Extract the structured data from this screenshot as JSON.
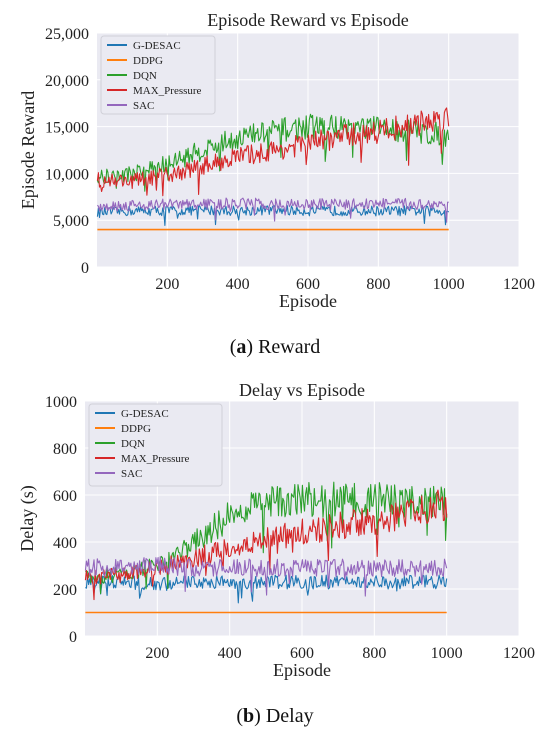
{
  "chart_data": [
    {
      "type": "line",
      "title": "Episode Reward vs Episode",
      "xlabel": "Episode",
      "ylabel": "Episode Reward",
      "xlim": [
        0,
        1200
      ],
      "ylim": [
        0,
        25000
      ],
      "xticks": [
        200,
        400,
        600,
        800,
        1000,
        1200
      ],
      "yticks": [
        0,
        5000,
        10000,
        15000,
        20000,
        25000
      ],
      "ytick_labels": [
        "0",
        "5,000",
        "10,000",
        "15,000",
        "20,000",
        "25,000"
      ],
      "grid": true,
      "legend_position": "top-left",
      "series": [
        {
          "name": "G-DESAC",
          "color": "#1f77b4",
          "x": [
            1,
            100,
            200,
            300,
            400,
            500,
            600,
            700,
            800,
            900,
            1000
          ],
          "values": [
            5800,
            6000,
            6000,
            6100,
            6000,
            6100,
            6000,
            6000,
            6000,
            6000,
            6000
          ]
        },
        {
          "name": "DDPG",
          "color": "#ff7f0e",
          "x": [
            1,
            1000
          ],
          "values": [
            4000,
            4000
          ]
        },
        {
          "name": "DQN",
          "color": "#2ca02c",
          "x": [
            1,
            100,
            200,
            300,
            400,
            500,
            600,
            700,
            800,
            900,
            1000
          ],
          "values": [
            9500,
            10000,
            11000,
            12500,
            13800,
            14500,
            15000,
            15000,
            14800,
            14500,
            14000
          ]
        },
        {
          "name": "MAX_Pressure",
          "color": "#d62728",
          "x": [
            1,
            100,
            200,
            300,
            400,
            500,
            600,
            700,
            800,
            900,
            1000
          ],
          "values": [
            9300,
            9200,
            9800,
            10800,
            11800,
            12400,
            13200,
            14000,
            14500,
            15200,
            16000
          ]
        },
        {
          "name": "SAC",
          "color": "#9467bd",
          "x": [
            1,
            100,
            200,
            300,
            400,
            500,
            600,
            700,
            800,
            900,
            1000
          ],
          "values": [
            6500,
            6600,
            6700,
            6700,
            6800,
            6700,
            6700,
            6700,
            6800,
            6700,
            6700
          ]
        }
      ]
    },
    {
      "type": "line",
      "title": "Delay vs Episode",
      "xlabel": "Episode",
      "ylabel": "Delay (s)",
      "xlim": [
        0,
        1200
      ],
      "ylim": [
        0,
        1000
      ],
      "xticks": [
        200,
        400,
        600,
        800,
        1000,
        1200
      ],
      "yticks": [
        0,
        200,
        400,
        600,
        800,
        1000
      ],
      "ytick_labels": [
        "0",
        "200",
        "400",
        "600",
        "800",
        "1000"
      ],
      "grid": true,
      "legend_position": "top-left",
      "series": [
        {
          "name": "G-DESAC",
          "color": "#1f77b4",
          "x": [
            1,
            100,
            200,
            300,
            400,
            500,
            600,
            700,
            800,
            900,
            1000
          ],
          "values": [
            230,
            230,
            220,
            230,
            230,
            230,
            230,
            230,
            230,
            230,
            230
          ]
        },
        {
          "name": "DDPG",
          "color": "#ff7f0e",
          "x": [
            1,
            1000
          ],
          "values": [
            100,
            100
          ]
        },
        {
          "name": "DQN",
          "color": "#2ca02c",
          "x": [
            1,
            100,
            200,
            300,
            400,
            500,
            600,
            700,
            800,
            900,
            1000
          ],
          "values": [
            250,
            260,
            300,
            400,
            510,
            560,
            580,
            580,
            580,
            570,
            560
          ]
        },
        {
          "name": "MAX_Pressure",
          "color": "#d62728",
          "x": [
            1,
            100,
            200,
            300,
            400,
            500,
            600,
            700,
            800,
            900,
            1000
          ],
          "values": [
            250,
            260,
            290,
            330,
            370,
            410,
            440,
            470,
            490,
            520,
            560
          ]
        },
        {
          "name": "SAC",
          "color": "#9467bd",
          "x": [
            1,
            100,
            200,
            300,
            400,
            500,
            600,
            700,
            800,
            900,
            1000
          ],
          "values": [
            290,
            300,
            300,
            290,
            290,
            290,
            290,
            290,
            290,
            290,
            290
          ]
        }
      ]
    }
  ],
  "captions": {
    "a_letter": "a",
    "a_text": "Reward",
    "b_letter": "b",
    "b_text": "Delay"
  }
}
